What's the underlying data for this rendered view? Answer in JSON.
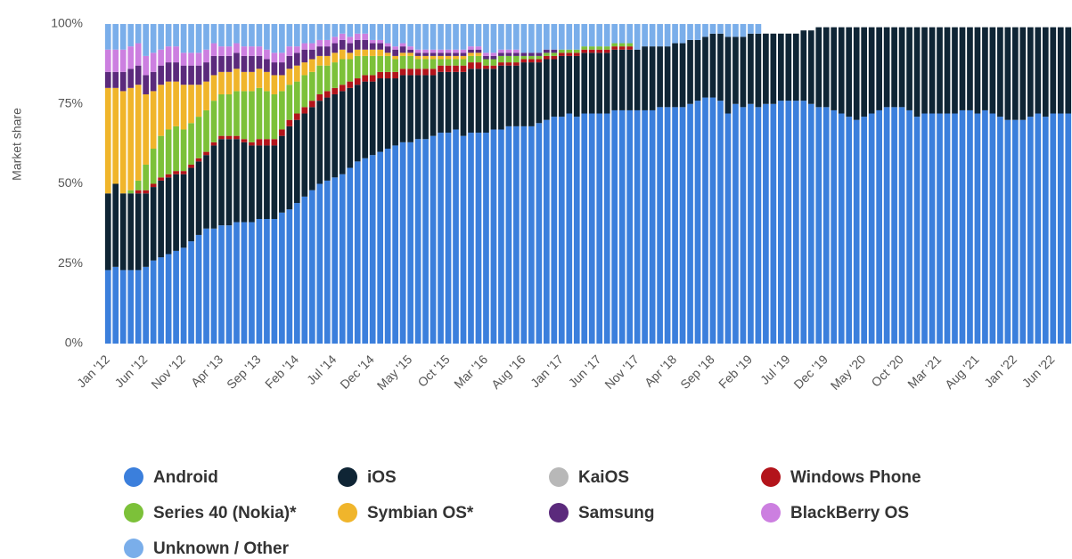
{
  "chart_data": {
    "type": "stacked-bar",
    "y_axis_label": "Market share",
    "categories": [
      "Jan '12",
      null,
      null,
      null,
      null,
      "Jun '12",
      null,
      null,
      null,
      null,
      "Nov '12",
      null,
      null,
      null,
      null,
      "Apr '13",
      null,
      null,
      null,
      null,
      "Sep '13",
      null,
      null,
      null,
      null,
      "Feb '14",
      null,
      null,
      null,
      null,
      "Jul '14",
      null,
      null,
      null,
      null,
      "Dec '14",
      null,
      null,
      null,
      null,
      "May '15",
      null,
      null,
      null,
      null,
      "Oct '15",
      null,
      null,
      null,
      null,
      "Mar '16",
      null,
      null,
      null,
      null,
      "Aug '16",
      null,
      null,
      null,
      null,
      "Jan '17",
      null,
      null,
      null,
      null,
      "Jun '17",
      null,
      null,
      null,
      null,
      "Nov '17",
      null,
      null,
      null,
      null,
      "Apr '18",
      null,
      null,
      null,
      null,
      "Sep '18",
      null,
      null,
      null,
      null,
      "Feb '19",
      null,
      null,
      null,
      null,
      "Jul '19",
      null,
      null,
      null,
      null,
      "Dec '19",
      null,
      null,
      null,
      null,
      "May '20",
      null,
      null,
      null,
      null,
      "Oct '20",
      null,
      null,
      null,
      null,
      "Mar '21",
      null,
      null,
      null,
      null,
      "Aug '21",
      null,
      null,
      null,
      null,
      "Jan '22",
      null,
      null,
      null,
      null,
      "Jun '22",
      null,
      null
    ],
    "ylim": [
      0,
      100
    ],
    "yticks": [
      {
        "value": 0,
        "label": "0%"
      },
      {
        "value": 25,
        "label": "25%"
      },
      {
        "value": 50,
        "label": "50%"
      },
      {
        "value": 75,
        "label": "75%"
      },
      {
        "value": 100,
        "label": "100%"
      }
    ],
    "legend": "bottom",
    "series": [
      {
        "name": "Android",
        "color": "#3b7fdc",
        "values": [
          23,
          24,
          23,
          23,
          23,
          24,
          26,
          27,
          28,
          29,
          30,
          32,
          34,
          36,
          36,
          37,
          37,
          38,
          38,
          38,
          39,
          39,
          39,
          41,
          42,
          44,
          46,
          48,
          50,
          51,
          52,
          53,
          55,
          57,
          58,
          59,
          60,
          61,
          62,
          63,
          63,
          64,
          64,
          65,
          66,
          66,
          67,
          65,
          66,
          66,
          66,
          67,
          67,
          68,
          68,
          68,
          68,
          69,
          70,
          71,
          71,
          72,
          71,
          72,
          72,
          72,
          72,
          73,
          73,
          73,
          73,
          73,
          73,
          74,
          74,
          74,
          74,
          75,
          76,
          77,
          77,
          76,
          72,
          75,
          74,
          75,
          74,
          75,
          75,
          76,
          76,
          76,
          76,
          75,
          74,
          74,
          73,
          72,
          71,
          70,
          71,
          72,
          73,
          74,
          74,
          74,
          73,
          71,
          72,
          72,
          72,
          72,
          72,
          73,
          73,
          72,
          73,
          72,
          71,
          70,
          70,
          70,
          71,
          72,
          71,
          72,
          72,
          72
        ]
      },
      {
        "name": "iOS",
        "color": "#0f2535",
        "values": [
          24,
          26,
          24,
          24,
          24,
          23,
          23,
          24,
          24,
          24,
          23,
          23,
          23,
          23,
          26,
          27,
          27,
          26,
          25,
          24,
          23,
          23,
          23,
          24,
          26,
          26,
          26,
          26,
          26,
          26,
          26,
          26,
          25,
          24,
          24,
          23,
          23,
          22,
          21,
          21,
          21,
          20,
          20,
          19,
          19,
          19,
          18,
          20,
          20,
          20,
          20,
          19,
          20,
          19,
          19,
          20,
          20,
          19,
          19,
          18,
          19,
          18,
          19,
          19,
          19,
          19,
          19,
          19,
          19,
          19,
          19,
          20,
          20,
          19,
          19,
          20,
          20,
          20,
          19,
          19,
          20,
          21,
          24,
          21,
          22,
          22,
          23,
          22,
          22,
          21,
          21,
          21,
          22,
          23,
          25,
          25,
          26,
          27,
          28,
          29,
          28,
          27,
          26,
          25,
          25,
          25,
          26,
          28,
          27,
          27,
          27,
          27,
          27,
          26,
          26,
          27,
          26,
          27,
          28,
          29,
          29,
          29,
          28,
          27,
          28,
          27,
          27,
          27
        ]
      },
      {
        "name": "KaiOS",
        "color": "#b8b8b8",
        "values": [
          0,
          0,
          0,
          0,
          0,
          0,
          0,
          0,
          0,
          0,
          0,
          0,
          0,
          0,
          0,
          0,
          0,
          0,
          0,
          0,
          0,
          0,
          0,
          0,
          0,
          0,
          0,
          0,
          0,
          0,
          0,
          0,
          0,
          0,
          0,
          0,
          0,
          0,
          0,
          0,
          0,
          0,
          0,
          0,
          0,
          0,
          0,
          0,
          0,
          0,
          0,
          0,
          0,
          0,
          0,
          0,
          0,
          0,
          0,
          0,
          0,
          0,
          0,
          0,
          0,
          0,
          0,
          0,
          0,
          0,
          0,
          0,
          0,
          0,
          0,
          0,
          0,
          0,
          0,
          0,
          0,
          0,
          0,
          0,
          0,
          0,
          0,
          0,
          0,
          0,
          0,
          0,
          0,
          0,
          0,
          0,
          0,
          0,
          0,
          0,
          0,
          0,
          0,
          0,
          0,
          0,
          0,
          0,
          0,
          0,
          0,
          0,
          0,
          0,
          0,
          0,
          0,
          0,
          0,
          0,
          0,
          0,
          0,
          0,
          0,
          0,
          0,
          0
        ]
      },
      {
        "name": "Windows Phone",
        "color": "#b3141b",
        "values": [
          0,
          0,
          0,
          0,
          1,
          1,
          1,
          1,
          1,
          1,
          1,
          1,
          1,
          1,
          1,
          1,
          1,
          1,
          1,
          1,
          2,
          2,
          2,
          2,
          2,
          2,
          2,
          2,
          2,
          2,
          2,
          2,
          2,
          2,
          2,
          2,
          2,
          2,
          2,
          2,
          2,
          2,
          2,
          2,
          2,
          2,
          2,
          2,
          2,
          2,
          1,
          1,
          1,
          1,
          1,
          1,
          1,
          1,
          1,
          1,
          1,
          1,
          1,
          1,
          1,
          1,
          1,
          1,
          1,
          1,
          0,
          0,
          0,
          0,
          0,
          0,
          0,
          0,
          0,
          0,
          0,
          0,
          0,
          0,
          0,
          0,
          0,
          0,
          0,
          0,
          0,
          0,
          0,
          0,
          0,
          0,
          0,
          0,
          0,
          0,
          0,
          0,
          0,
          0,
          0,
          0,
          0,
          0,
          0,
          0,
          0,
          0,
          0,
          0,
          0,
          0,
          0,
          0,
          0,
          0,
          0,
          0,
          0,
          0,
          0,
          0,
          0,
          0
        ]
      },
      {
        "name": "Series 40 (Nokia)*",
        "color": "#7cc139",
        "values": [
          0,
          0,
          0,
          1,
          3,
          8,
          11,
          13,
          14,
          14,
          13,
          13,
          13,
          13,
          13,
          13,
          13,
          14,
          15,
          16,
          16,
          15,
          14,
          12,
          11,
          10,
          10,
          9,
          9,
          8,
          8,
          8,
          7,
          7,
          6,
          6,
          5,
          5,
          4,
          4,
          4,
          3,
          3,
          3,
          2,
          2,
          2,
          2,
          2,
          2,
          2,
          2,
          2,
          2,
          2,
          1,
          1,
          1,
          1,
          1,
          1,
          1,
          1,
          1,
          1,
          1,
          1,
          1,
          1,
          1,
          0,
          0,
          0,
          0,
          0,
          0,
          0,
          0,
          0,
          0,
          0,
          0,
          0,
          0,
          0,
          0,
          0,
          0,
          0,
          0,
          0,
          0,
          0,
          0,
          0,
          0,
          0,
          0,
          0,
          0,
          0,
          0,
          0,
          0,
          0,
          0,
          0,
          0,
          0,
          0,
          0,
          0,
          0,
          0,
          0,
          0,
          0,
          0,
          0,
          0,
          0,
          0,
          0,
          0,
          0,
          0,
          0,
          0
        ]
      },
      {
        "name": "Symbian OS*",
        "color": "#f0b52b",
        "values": [
          33,
          30,
          32,
          32,
          30,
          22,
          18,
          16,
          15,
          14,
          14,
          12,
          10,
          9,
          8,
          7,
          7,
          7,
          6,
          6,
          6,
          6,
          6,
          5,
          5,
          5,
          4,
          4,
          3,
          3,
          3,
          3,
          2,
          2,
          2,
          2,
          2,
          1,
          1,
          1,
          1,
          1,
          1,
          1,
          1,
          1,
          1,
          1,
          1,
          1,
          0,
          0,
          0,
          0,
          0,
          0,
          0,
          0,
          0,
          0,
          0,
          0,
          0,
          0,
          0,
          0,
          0,
          0,
          0,
          0,
          0,
          0,
          0,
          0,
          0,
          0,
          0,
          0,
          0,
          0,
          0,
          0,
          0,
          0,
          0,
          0,
          0,
          0,
          0,
          0,
          0,
          0,
          0,
          0,
          0,
          0,
          0,
          0,
          0,
          0,
          0,
          0,
          0,
          0,
          0,
          0,
          0,
          0,
          0,
          0,
          0,
          0,
          0,
          0,
          0,
          0,
          0,
          0,
          0,
          0,
          0,
          0,
          0,
          0,
          0,
          0,
          0,
          0
        ]
      },
      {
        "name": "Samsung",
        "color": "#5b2a7c",
        "values": [
          5,
          5,
          6,
          6,
          6,
          6,
          6,
          6,
          6,
          6,
          6,
          6,
          6,
          6,
          6,
          5,
          5,
          5,
          5,
          5,
          4,
          4,
          4,
          4,
          4,
          4,
          4,
          3,
          3,
          3,
          3,
          3,
          3,
          3,
          3,
          2,
          2,
          2,
          2,
          2,
          1,
          1,
          1,
          1,
          1,
          1,
          1,
          1,
          1,
          1,
          1,
          1,
          1,
          1,
          1,
          1,
          1,
          1,
          1,
          1,
          0,
          0,
          0,
          0,
          0,
          0,
          0,
          0,
          0,
          0,
          0,
          0,
          0,
          0,
          0,
          0,
          0,
          0,
          0,
          0,
          0,
          0,
          0,
          0,
          0,
          0,
          0,
          0,
          0,
          0,
          0,
          0,
          0,
          0,
          0,
          0,
          0,
          0,
          0,
          0,
          0,
          0,
          0,
          0,
          0,
          0,
          0,
          0,
          0,
          0,
          0,
          0,
          0,
          0,
          0,
          0,
          0,
          0,
          0,
          0,
          0,
          0,
          0,
          0,
          0,
          0,
          0,
          0
        ]
      },
      {
        "name": "BlackBerry OS",
        "color": "#cc7fe0",
        "values": [
          7,
          7,
          7,
          7,
          7,
          6,
          6,
          5,
          5,
          5,
          4,
          4,
          4,
          4,
          4,
          3,
          3,
          3,
          3,
          3,
          3,
          3,
          3,
          3,
          3,
          2,
          2,
          2,
          2,
          2,
          2,
          2,
          2,
          2,
          2,
          1,
          1,
          1,
          1,
          1,
          1,
          1,
          1,
          1,
          1,
          1,
          1,
          1,
          1,
          1,
          1,
          1,
          1,
          1,
          1,
          0,
          0,
          0,
          0,
          0,
          0,
          0,
          0,
          0,
          0,
          0,
          0,
          0,
          0,
          0,
          0,
          0,
          0,
          0,
          0,
          0,
          0,
          0,
          0,
          0,
          0,
          0,
          0,
          0,
          0,
          0,
          0,
          0,
          0,
          0,
          0,
          0,
          0,
          0,
          0,
          0,
          0,
          0,
          0,
          0,
          0,
          0,
          0,
          0,
          0,
          0,
          0,
          0,
          0,
          0,
          0,
          0,
          0,
          0,
          0,
          0,
          0,
          0,
          0,
          0,
          0,
          0,
          0,
          0,
          0,
          0,
          0,
          0
        ]
      },
      {
        "name": "Unknown / Other",
        "color": "#7aaeea",
        "values": [
          8,
          8,
          8,
          7,
          6,
          10,
          9,
          8,
          7,
          7,
          9,
          9,
          9,
          8,
          6,
          7,
          7,
          6,
          7,
          7,
          7,
          8,
          9,
          9,
          7,
          7,
          6,
          6,
          5,
          5,
          4,
          3,
          4,
          3,
          3,
          5,
          5,
          6,
          7,
          6,
          7,
          8,
          8,
          8,
          8,
          8,
          8,
          8,
          7,
          7,
          9,
          9,
          8,
          8,
          8,
          9,
          9,
          9,
          8,
          8,
          8,
          8,
          8,
          7,
          7,
          7,
          7,
          6,
          6,
          6,
          8,
          7,
          7,
          7,
          7,
          6,
          6,
          5,
          5,
          4,
          3,
          3,
          4,
          4,
          4,
          3,
          3,
          0,
          0,
          0,
          0,
          0,
          0,
          0,
          0,
          0,
          0,
          0,
          0,
          0,
          0,
          0,
          0,
          0,
          0,
          0,
          0,
          0,
          0,
          0,
          0,
          0,
          0,
          0,
          0,
          0,
          0,
          0,
          0,
          0,
          0,
          0,
          0,
          0,
          0,
          0,
          0,
          0
        ]
      }
    ]
  }
}
